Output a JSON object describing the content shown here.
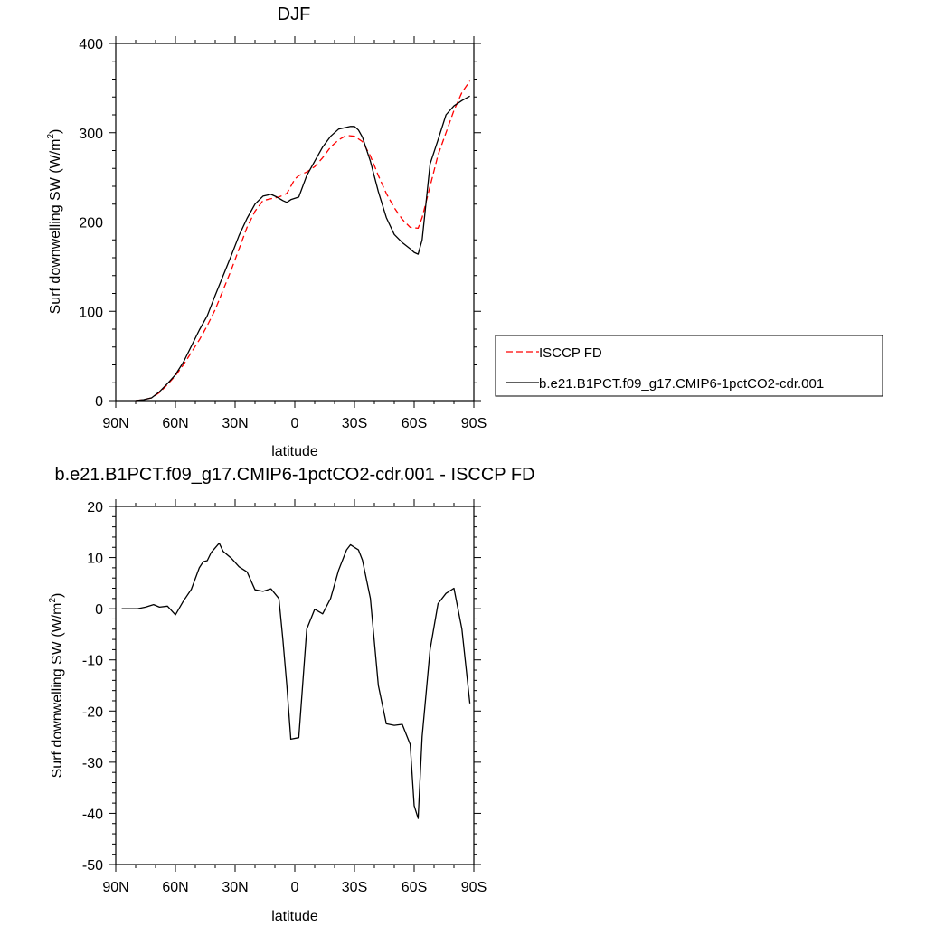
{
  "chart_data": [
    {
      "type": "line",
      "title": "DJF",
      "xlabel": "latitude",
      "ylabel_main": "Surf downwelling SW (W/m",
      "ylabel_sup": "2",
      "ylabel_close": ")",
      "xlim": [
        90,
        -90
      ],
      "ylim": [
        0,
        400
      ],
      "x_ticks": [
        90,
        60,
        30,
        0,
        -30,
        -60,
        -90
      ],
      "x_tick_labels": [
        "90N",
        "60N",
        "30N",
        "0",
        "30S",
        "60S",
        "90S"
      ],
      "y_ticks": [
        0,
        100,
        200,
        300,
        400
      ],
      "y_tick_labels": [
        "0",
        "100",
        "200",
        "300",
        "400"
      ],
      "legend_position": "right",
      "series": [
        {
          "name": "ISCCP FD",
          "color": "#ff0000",
          "dash": "dashed",
          "x": [
            80,
            76,
            72,
            68,
            64,
            60,
            56,
            52,
            48,
            44,
            40,
            36,
            32,
            28,
            24,
            20,
            16,
            12,
            8,
            4,
            0,
            -2,
            -6,
            -10,
            -14,
            -18,
            -22,
            -26,
            -30,
            -34,
            -38,
            -42,
            -46,
            -50,
            -54,
            -58,
            -62,
            -64,
            -68,
            -72,
            -76,
            -80,
            -84,
            -88
          ],
          "y": [
            0,
            1,
            3,
            9,
            18,
            28,
            40,
            54,
            68,
            84,
            102,
            124,
            146,
            170,
            194,
            212,
            224,
            226,
            228,
            232,
            248,
            252,
            256,
            262,
            272,
            284,
            292,
            297,
            296,
            290,
            274,
            252,
            232,
            216,
            203,
            194,
            193,
            205,
            240,
            275,
            300,
            325,
            345,
            358
          ]
        },
        {
          "name": "b.e21.B1PCT.f09_g17.CMIP6-1pctCO2-cdr.001",
          "color": "#000000",
          "dash": "solid",
          "x": [
            80,
            76,
            72,
            68,
            64,
            60,
            56,
            52,
            48,
            44,
            40,
            36,
            32,
            28,
            24,
            20,
            16,
            12,
            9,
            6,
            4,
            2,
            -2,
            -6,
            -10,
            -14,
            -18,
            -22,
            -26,
            -28,
            -30,
            -32,
            -34,
            -38,
            -42,
            -46,
            -50,
            -54,
            -58,
            -60,
            -62,
            -64,
            -68,
            -72,
            -76,
            -80,
            -84,
            -88
          ],
          "y": [
            0,
            1,
            3,
            10,
            19,
            29,
            43,
            61,
            79,
            95,
            118,
            140,
            162,
            185,
            204,
            220,
            229,
            231,
            228,
            224,
            222,
            225,
            228,
            252,
            268,
            284,
            296,
            304,
            306,
            307,
            307,
            303,
            295,
            268,
            234,
            205,
            186,
            177,
            170,
            166,
            164,
            180,
            265,
            292,
            320,
            330,
            336,
            341
          ]
        }
      ]
    },
    {
      "type": "line",
      "title": "b.e21.B1PCT.f09_g17.CMIP6-1pctCO2-cdr.001 - ISCCP FD",
      "xlabel": "latitude",
      "ylabel_main": "Surf downwelling SW (W/m",
      "ylabel_sup": "2",
      "ylabel_close": ")",
      "xlim": [
        90,
        -90
      ],
      "ylim": [
        -50,
        20
      ],
      "x_ticks": [
        90,
        60,
        30,
        0,
        -30,
        -60,
        -90
      ],
      "x_tick_labels": [
        "90N",
        "60N",
        "30N",
        "0",
        "30S",
        "60S",
        "90S"
      ],
      "y_ticks": [
        -50,
        -40,
        -30,
        -20,
        -10,
        0,
        10,
        20
      ],
      "y_tick_labels": [
        "-50",
        "-40",
        "-30",
        "-20",
        "-10",
        "0",
        "10",
        "20"
      ],
      "series": [
        {
          "color": "#000000",
          "dash": "solid",
          "x": [
            87,
            83,
            79,
            75,
            71,
            68,
            64,
            60,
            56,
            52,
            48,
            46,
            44,
            42,
            38,
            36,
            32,
            28,
            24,
            20,
            16,
            12,
            8,
            6,
            4,
            2,
            -2,
            -6,
            -10,
            -14,
            -18,
            -22,
            -26,
            -28,
            -30,
            -32,
            -34,
            -38,
            -42,
            -46,
            -50,
            -54,
            -58,
            -60,
            -62,
            -64,
            -68,
            -72,
            -76,
            -80,
            -84,
            -88
          ],
          "y": [
            0,
            0,
            0,
            0.3,
            0.8,
            0.3,
            0.5,
            -1.2,
            1.5,
            3.8,
            8,
            9.2,
            9.4,
            11,
            12.8,
            11.2,
            9.9,
            8.2,
            7.2,
            3.7,
            3.4,
            3.9,
            2,
            -6,
            -15,
            -25.5,
            -25.2,
            -4,
            -0.1,
            -1,
            2,
            7.5,
            11.5,
            12.5,
            12,
            11.5,
            9.5,
            2,
            -15,
            -22.5,
            -22.8,
            -22.6,
            -26.5,
            -38.5,
            -41,
            -25,
            -8,
            1,
            3,
            4,
            -4,
            -18.5
          ]
        }
      ]
    }
  ]
}
